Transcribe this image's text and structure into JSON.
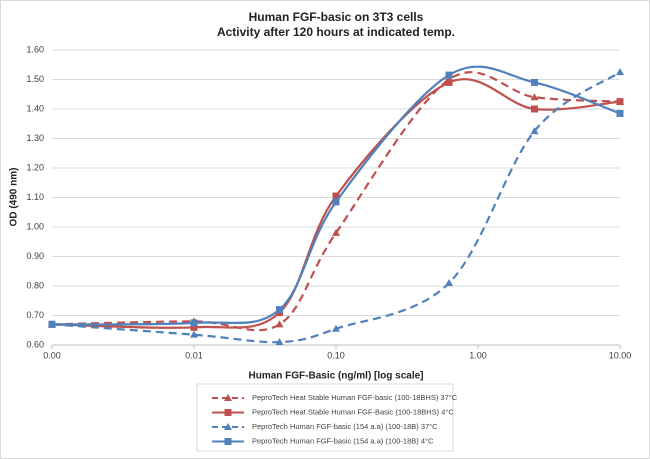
{
  "chart_data": {
    "type": "line",
    "title": "Human FGF-basic on 3T3 cells",
    "subtitle": "Activity after 120 hours at indicated temp.",
    "x_label": "Human FGF-Basic (ng/ml) [log scale]",
    "y_label": "OD (490 nm)",
    "x": [
      0.001,
      0.01,
      0.04,
      0.1,
      0.625,
      2.5,
      10
    ],
    "x_scale": "log",
    "xlim": [
      0.001,
      10
    ],
    "xticks": [
      {
        "value": 0.001,
        "label": "0.00"
      },
      0.01,
      {
        "value": 0.1,
        "label": "0.10"
      },
      {
        "value": 1,
        "label": "1.00"
      },
      {
        "value": 10,
        "label": "10.00"
      }
    ],
    "ylim": [
      0.6,
      1.6
    ],
    "yticks": [
      {
        "value": 0.6,
        "label": "0.60"
      },
      {
        "value": 0.7,
        "label": "0.70"
      },
      {
        "value": 0.8,
        "label": "0.80"
      },
      {
        "value": 0.9,
        "label": "0.90"
      },
      {
        "value": 1.0,
        "label": "1.00"
      },
      {
        "value": 1.1,
        "label": "1.10"
      },
      {
        "value": 1.2,
        "label": "1.20"
      },
      {
        "value": 1.3,
        "label": "1.30"
      },
      {
        "value": 1.4,
        "label": "1.40"
      },
      {
        "value": 1.5,
        "label": "1.50"
      },
      {
        "value": 1.6,
        "label": "1.60"
      }
    ],
    "grid": true,
    "legend": "bottom",
    "series": [
      {
        "name": "PeproTech Heat Stable Human FGF-basic (100-18BHS) 37°C",
        "color": "#c0504d",
        "line_style": "dashed",
        "marker": "triangle",
        "values": [
          0.67,
          0.68,
          0.67,
          0.98,
          1.5,
          1.44,
          1.425
        ]
      },
      {
        "name": "PeproTech Heat Stable Human FGF-Basic (100-18BHS) 4°C",
        "color": "#c0504d",
        "line_style": "solid",
        "marker": "square",
        "values": [
          0.67,
          0.66,
          0.71,
          1.105,
          1.49,
          1.4,
          1.425
        ]
      },
      {
        "name": "PeproTech Human FGF-basic (154 a.a) (100-18B) 37°C",
        "color": "#4f81bd",
        "line_style": "dashed",
        "marker": "triangle",
        "values": [
          0.67,
          0.635,
          0.61,
          0.655,
          0.81,
          1.325,
          1.525
        ]
      },
      {
        "name": "PeproTech Human FGF-basic (154 a.a) (100-18B) 4°C",
        "color": "#4f81bd",
        "line_style": "solid",
        "marker": "square",
        "values": [
          0.67,
          0.675,
          0.72,
          1.085,
          1.515,
          1.49,
          1.385
        ]
      }
    ]
  }
}
